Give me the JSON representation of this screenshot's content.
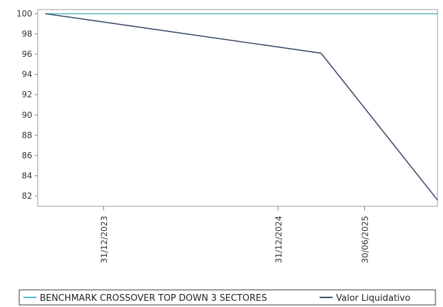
{
  "chart_data": {
    "type": "line",
    "title": "",
    "xlabel": "",
    "ylabel": "",
    "x_ticks": [
      "31/12/2023",
      "31/12/2024",
      "30/06/2025"
    ],
    "y_ticks": [
      100,
      98,
      96,
      94,
      92,
      90,
      88,
      86,
      84,
      82
    ],
    "ylim": [
      81,
      100.5
    ],
    "xlim": [
      "2023-08-15",
      "2025-11-30"
    ],
    "grid": false,
    "legend": "bottom",
    "series": [
      {
        "name": "BENCHMARK CROSSOVER TOP DOWN 3 SECTORES",
        "color": "#4fb8c4",
        "points": [
          {
            "x": "2023-08-31",
            "y": 100
          },
          {
            "x": "2025-11-30",
            "y": 100
          }
        ]
      },
      {
        "name": "Valor Liquidativo",
        "color": "#3b4a6b",
        "points": [
          {
            "x": "2023-08-31",
            "y": 100
          },
          {
            "x": "2025-03-31",
            "y": 96.1
          },
          {
            "x": "2025-11-30",
            "y": 81.6
          }
        ]
      }
    ]
  }
}
